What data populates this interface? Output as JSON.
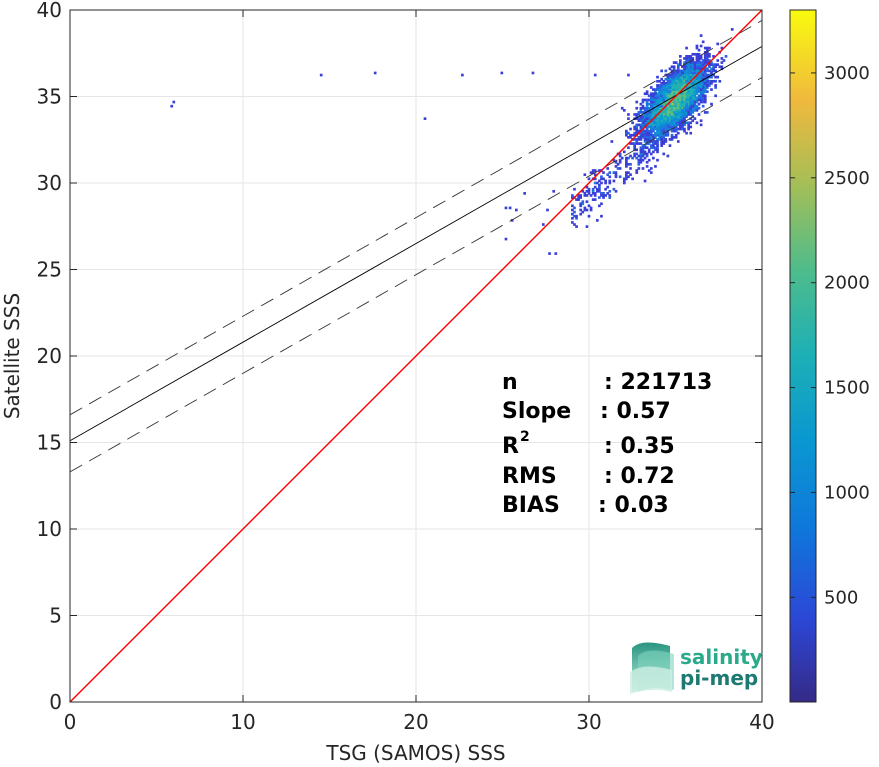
{
  "chart_data": {
    "type": "heatmap",
    "xlabel": "TSG (SAMOS) SSS",
    "ylabel": "Satellite SSS",
    "xlim": [
      0,
      40
    ],
    "ylim": [
      0,
      40
    ],
    "xticks": [
      0,
      10,
      20,
      30,
      40
    ],
    "yticks": [
      0,
      5,
      10,
      15,
      20,
      25,
      30,
      35,
      40
    ],
    "grid": true,
    "colorbar": {
      "range": [
        1,
        3300
      ],
      "ticks": [
        500,
        1000,
        1500,
        2000,
        2500,
        3000
      ],
      "colormap": "parula"
    },
    "density_center": [
      35,
      34.8
    ],
    "lines": {
      "identity": {
        "slope": 1,
        "intercept": 0,
        "color": "#ff0000"
      },
      "fit": {
        "slope": 0.57,
        "intercept": 15.1,
        "color": "#000000"
      },
      "fit_upper": {
        "slope": 0.57,
        "intercept": 16.6,
        "style": "dashed"
      },
      "fit_lower": {
        "slope": 0.57,
        "intercept": 13.3,
        "style": "dashed"
      }
    },
    "stats": [
      {
        "key": "n",
        "sup": "",
        "value": ": 221713"
      },
      {
        "key": "Slope",
        "sup": "",
        "value": ": 0.57"
      },
      {
        "key": "R",
        "sup": "2",
        "value": ": 0.35"
      },
      {
        "key": "RMS",
        "sup": "",
        "value": ": 0.72"
      },
      {
        "key": "BIAS",
        "sup": "",
        "value": ": 0.03"
      }
    ]
  },
  "logo": {
    "line1": "salinity",
    "line2": "pi-mep",
    "color1": "#2aaa8a",
    "color2": "#1d7a72"
  }
}
